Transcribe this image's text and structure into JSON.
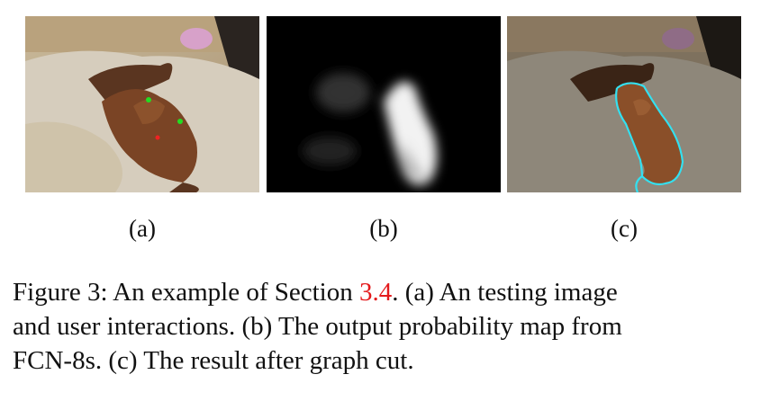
{
  "panels": [
    {
      "label": "(a)",
      "description": "testing image with user clicks"
    },
    {
      "label": "(b)",
      "description": "probability map"
    },
    {
      "label": "(c)",
      "description": "graph cut result"
    }
  ],
  "caption": {
    "prefix": "Figure 3: An example of Section ",
    "section_ref": "3.4",
    "line1_rest": ". (a) An testing image",
    "line2": "and user interactions. (b) The output probability map from",
    "line3": "FCN-8s. (c) The result after graph cut."
  },
  "colors": {
    "foreground_click": "#22dd22",
    "background_click": "#ee2222",
    "contour": "#33e0f0",
    "section_ref": "#e41a1c"
  }
}
